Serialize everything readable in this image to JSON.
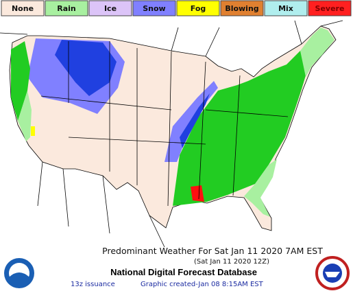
{
  "legend": [
    {
      "label": "None",
      "color": "#fbe9dd"
    },
    {
      "label": "Rain",
      "color": "#a8f0a0"
    },
    {
      "label": "Ice",
      "color": "#dcc4f8"
    },
    {
      "label": "Snow",
      "color": "#8080ff"
    },
    {
      "label": "Fog",
      "color": "#ffff00"
    },
    {
      "label": "Blowing",
      "color": "#e08030"
    },
    {
      "label": "Mix",
      "color": "#b0eeee"
    },
    {
      "label": "Severe",
      "color": "#ff2020"
    }
  ],
  "title": "Predominant Weather For Sat Jan 11 2020  7AM EST",
  "subtitle": "(Sat Jan 11 2020 12Z)",
  "database": "National Digital Forecast Database",
  "issuance": "13z issuance",
  "created": "Graphic created-Jan 08  8:15AM EST"
}
